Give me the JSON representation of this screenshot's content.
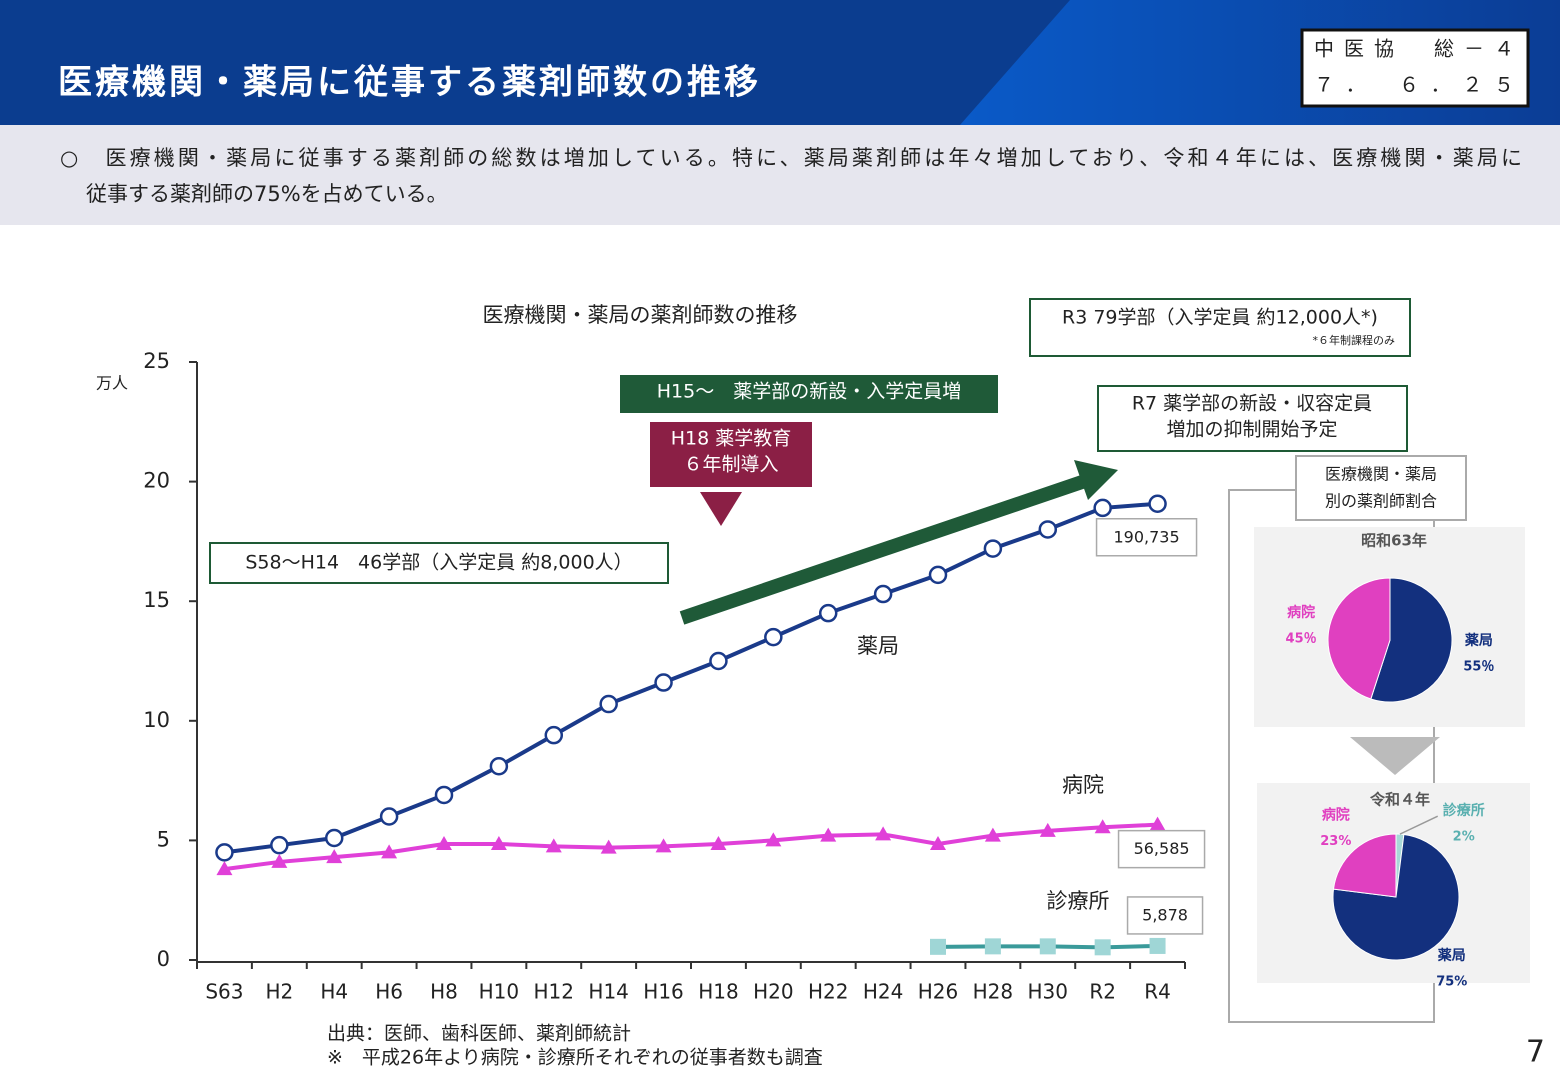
{
  "header": {
    "title": "医療機関・薬局に従事する薬剤師数の推移",
    "doc_code": [
      "中医協　総－４",
      "７．　６．２５"
    ]
  },
  "summary": [
    "○　医療機関・薬局に従事する薬剤師の総数は増加している。特に、薬局薬剤師は年々増加しており、令和４年には、医療機関・薬局に",
    "従事する薬剤師の75%を占めている。"
  ],
  "chart_data": [
    {
      "type": "line",
      "title": "医療機関・薬局の薬剤師数の推移",
      "y_unit": "万人",
      "categories": [
        "S63",
        "H2",
        "H4",
        "H6",
        "H8",
        "H10",
        "H12",
        "H14",
        "H16",
        "H18",
        "H20",
        "H22",
        "H24",
        "H26",
        "H28",
        "H30",
        "R2",
        "R4"
      ],
      "ylim": [
        0,
        25
      ],
      "yticks": [
        0,
        5,
        10,
        15,
        20,
        25
      ],
      "series": [
        {
          "name": "薬局",
          "color": "#1a3a8a",
          "marker": "circle",
          "marker_color": "#ffffff",
          "values": [
            4.5,
            4.8,
            5.1,
            6.0,
            6.9,
            8.1,
            9.4,
            10.7,
            11.6,
            12.5,
            13.5,
            14.5,
            15.3,
            16.1,
            17.2,
            18.0,
            18.9,
            19.0735
          ],
          "value_labels": [
            null,
            null,
            null,
            null,
            null,
            null,
            null,
            null,
            null,
            null,
            null,
            null,
            null,
            null,
            null,
            null,
            null,
            "190,735"
          ]
        },
        {
          "name": "病院",
          "color": "#e040d8",
          "marker": "triangle",
          "marker_color": "#e040d8",
          "values": [
            3.8,
            4.1,
            4.3,
            4.5,
            4.85,
            4.85,
            4.75,
            4.7,
            4.75,
            4.85,
            5.0,
            5.2,
            5.25,
            4.85,
            5.2,
            5.4,
            5.55,
            5.6585
          ],
          "value_labels": [
            null,
            null,
            null,
            null,
            null,
            null,
            null,
            null,
            null,
            null,
            null,
            null,
            null,
            null,
            null,
            null,
            null,
            "56,585"
          ]
        },
        {
          "name": "診療所",
          "color": "#3a9a9a",
          "marker": "square",
          "marker_color": "#9fd6d6",
          "values": [
            null,
            null,
            null,
            null,
            null,
            null,
            null,
            null,
            null,
            null,
            null,
            null,
            null,
            0.55,
            0.57,
            0.57,
            0.53,
            0.5878
          ],
          "value_labels": [
            null,
            null,
            null,
            null,
            null,
            null,
            null,
            null,
            null,
            null,
            null,
            null,
            null,
            null,
            null,
            null,
            null,
            "5,878"
          ]
        }
      ],
      "annotations": {
        "s58": "S58～H14　46学部（入学定員 約8,000人）",
        "h15": "H15～　薬学部の新設・入学定員増",
        "h18": [
          "H18 薬学教育",
          "６年制導入"
        ],
        "r3": "R3 79学部（入学定員 約12,000人*)",
        "r3_note": "*６年制課程のみ",
        "r7": [
          "R7 薬学部の新設・収容定員",
          "増加の抑制開始予定"
        ]
      }
    },
    {
      "type": "pie",
      "title": "昭和63年",
      "categories": [
        "薬局",
        "病院"
      ],
      "values": [
        55,
        45
      ],
      "value_labels": [
        "55％",
        "45％"
      ],
      "colors": [
        "#13307e",
        "#e040c0"
      ]
    },
    {
      "type": "pie",
      "title": "令和４年",
      "categories": [
        "診療所",
        "薬局",
        "病院"
      ],
      "values": [
        2,
        75,
        23
      ],
      "value_labels": [
        "2%",
        "75%",
        "23%"
      ],
      "colors": [
        "#a8d8d8",
        "#13307e",
        "#e040c0"
      ]
    }
  ],
  "pie_panel_title": [
    "医療機関・薬局",
    "別の薬剤師割合"
  ],
  "footer": {
    "source": "出典：医師、歯科医師、薬剤師統計",
    "note": "※　平成26年より病院・診療所それぞれの従事者数も調査",
    "page": "7"
  }
}
